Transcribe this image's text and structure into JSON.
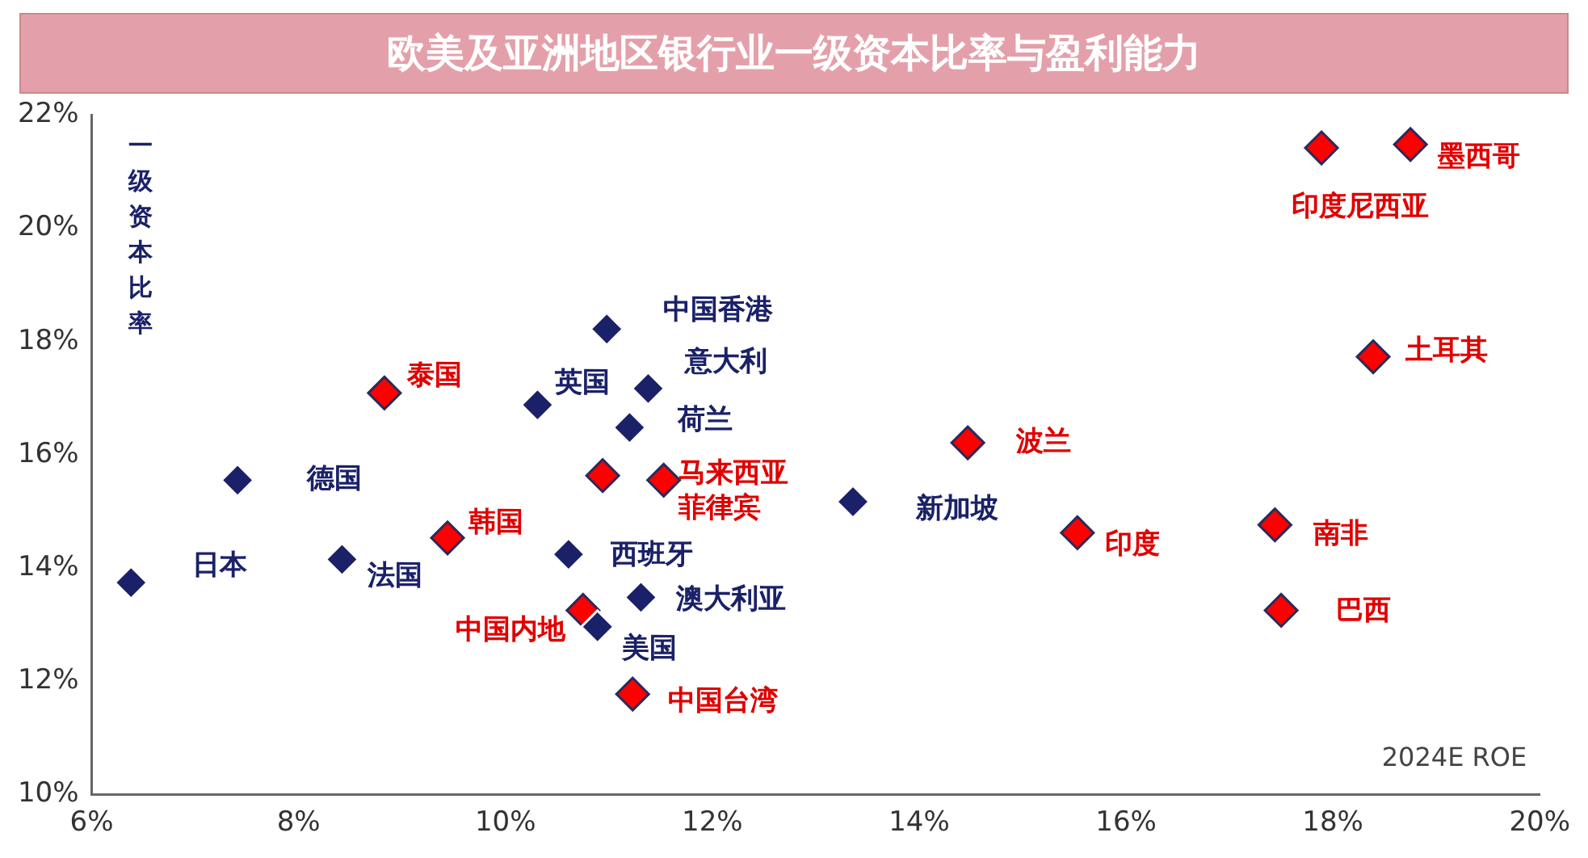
{
  "chart_data": {
    "type": "scatter",
    "title": "欧美及亚洲地区银行业一级资本比率与盈利能力",
    "xlabel": "2024E ROE",
    "ylabel": "一级资本比率",
    "xlim": [
      6,
      20
    ],
    "xticks": [
      {
        "value": 6,
        "label": "6%"
      },
      {
        "value": 8,
        "label": "8%"
      },
      {
        "value": 10,
        "label": "10%"
      },
      {
        "value": 12,
        "label": "12%"
      },
      {
        "value": 14,
        "label": "14%"
      },
      {
        "value": 16,
        "label": "16%"
      },
      {
        "value": 18,
        "label": "18%"
      },
      {
        "value": 20,
        "label": "20%"
      }
    ],
    "ylim": [
      10,
      22
    ],
    "yticks": [
      {
        "value": 10,
        "label": "10%"
      },
      {
        "value": 12,
        "label": "12%"
      },
      {
        "value": 14,
        "label": "14%"
      },
      {
        "value": 16,
        "label": "16%"
      },
      {
        "value": 18,
        "label": "18%"
      },
      {
        "value": 20,
        "label": "20%"
      },
      {
        "value": 22,
        "label": "22%"
      }
    ],
    "grid": false,
    "legend": false,
    "marker": "diamond",
    "series": [
      {
        "color": "#1b2168",
        "x": [
          6.38,
          7.41,
          8.42,
          10.31,
          10.98,
          11.38,
          11.2,
          10.61,
          11.31,
          10.89,
          13.36
        ],
        "values": [
          13.74,
          15.55,
          14.15,
          16.88,
          18.22,
          17.17,
          16.48,
          14.24,
          13.48,
          12.96,
          15.17
        ]
      },
      {
        "color": "#ff0000",
        "x": [
          8.83,
          9.44,
          10.75,
          10.94,
          11.53,
          11.23,
          14.47,
          15.53,
          17.44,
          17.5,
          18.39,
          17.89,
          18.75
        ],
        "values": [
          17.09,
          14.53,
          13.25,
          15.63,
          15.55,
          11.77,
          16.21,
          14.62,
          14.76,
          13.25,
          17.73,
          21.42,
          21.48
        ]
      }
    ],
    "annotations": [
      {
        "text": "日本",
        "x": 6.38,
        "y": 13.74
      },
      {
        "text": "德国",
        "x": 7.41,
        "y": 15.55
      },
      {
        "text": "法国",
        "x": 8.42,
        "y": 14.15
      },
      {
        "text": "英国",
        "x": 10.31,
        "y": 16.88
      },
      {
        "text": "中国香港",
        "x": 10.98,
        "y": 18.22
      },
      {
        "text": "意大利",
        "x": 11.38,
        "y": 17.17
      },
      {
        "text": "荷兰",
        "x": 11.2,
        "y": 16.48
      },
      {
        "text": "西班牙",
        "x": 10.61,
        "y": 14.24
      },
      {
        "text": "澳大利亚",
        "x": 11.31,
        "y": 13.48
      },
      {
        "text": "美国",
        "x": 10.89,
        "y": 12.96
      },
      {
        "text": "新加坡",
        "x": 13.36,
        "y": 15.17
      },
      {
        "text": "泰国",
        "x": 8.83,
        "y": 17.09
      },
      {
        "text": "韩国",
        "x": 9.44,
        "y": 14.53
      },
      {
        "text": "中国内地",
        "x": 10.75,
        "y": 13.25
      },
      {
        "text": "马来西亚",
        "x": 10.94,
        "y": 15.63
      },
      {
        "text": "菲律宾",
        "x": 11.53,
        "y": 15.55
      },
      {
        "text": "中国台湾",
        "x": 11.23,
        "y": 11.77
      },
      {
        "text": "波兰",
        "x": 14.47,
        "y": 16.21
      },
      {
        "text": "印度",
        "x": 15.53,
        "y": 14.62
      },
      {
        "text": "南非",
        "x": 17.44,
        "y": 14.76
      },
      {
        "text": "巴西",
        "x": 17.5,
        "y": 13.25
      },
      {
        "text": "土耳其",
        "x": 18.39,
        "y": 17.73
      },
      {
        "text": "印度尼西亚",
        "x": 17.89,
        "y": 21.42
      },
      {
        "text": "墨西哥",
        "x": 18.75,
        "y": 21.48
      }
    ]
  }
}
